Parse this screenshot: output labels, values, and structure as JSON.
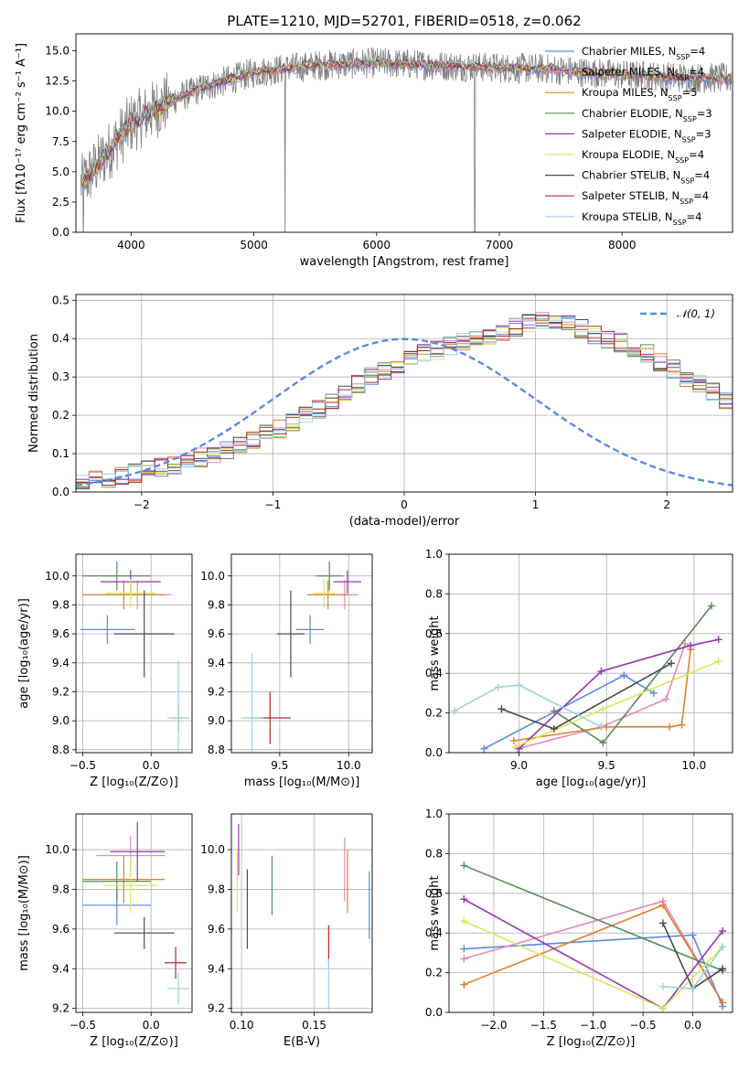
{
  "title": "PLATE=1210, MJD=52701, FIBERID=0518, z=0.062",
  "colors": {
    "Chabrier MILES": "#5b8ae0",
    "Salpeter MILES": "#e489c0",
    "Kroupa MILES": "#df7f2e",
    "Chabrier ELODIE": "#5b8a5e",
    "Salpeter ELODIE": "#9636b2",
    "Kroupa ELODIE": "#d7ea5a",
    "Chabrier STELIB": "#4a4a4a",
    "Salpeter STELIB": "#b52a2a",
    "Kroupa STELIB": "#9bd3e0",
    "data": "#808080",
    "normal": "#5b8ae0"
  },
  "chart_data": [
    {
      "type": "line",
      "title": "PLATE=1210, MJD=52701, FIBERID=0518, z=0.062",
      "xlabel": "wavelength [Angstrom, rest frame]",
      "ylabel": "Flux [f_λ 10^-17 erg cm^-2 s^-1 A^-1]",
      "xlim": [
        3550,
        8900
      ],
      "ylim": [
        0,
        16.4
      ],
      "xticks": [
        "4000",
        "5000",
        "6000",
        "7000",
        "8000"
      ],
      "yticks": [
        "0.0",
        "2.5",
        "5.0",
        "7.5",
        "10.0",
        "12.5",
        "15.0"
      ],
      "continuum": {
        "x": [
          3600,
          3800,
          4000,
          4300,
          4600,
          5000,
          5500,
          6000,
          6500,
          7000,
          7400,
          7600,
          8000,
          8500,
          8900
        ],
        "y": [
          4.0,
          6.5,
          9.0,
          10.8,
          12.0,
          13.2,
          13.8,
          14.0,
          13.8,
          13.6,
          13.5,
          13.3,
          13.0,
          12.8,
          12.7
        ]
      },
      "legend": [
        {
          "name": "Chabrier MILES",
          "nssp": "4"
        },
        {
          "name": "Salpeter MILES",
          "nssp": "4"
        },
        {
          "name": "Kroupa MILES",
          "nssp": "5"
        },
        {
          "name": "Chabrier ELODIE",
          "nssp": "3"
        },
        {
          "name": "Salpeter ELODIE",
          "nssp": "3"
        },
        {
          "name": "Kroupa ELODIE",
          "nssp": "4"
        },
        {
          "name": "Chabrier STELIB",
          "nssp": "4"
        },
        {
          "name": "Salpeter STELIB",
          "nssp": "4"
        },
        {
          "name": "Kroupa STELIB",
          "nssp": "4"
        }
      ],
      "grid": false,
      "legend_position": "right"
    },
    {
      "type": "bar",
      "xlabel": "(data-model)/error",
      "ylabel": "Normed distribution",
      "xlim": [
        -2.5,
        2.5
      ],
      "ylim": [
        0,
        0.515
      ],
      "xticks": [
        "−2",
        "−1",
        "0",
        "1",
        "2"
      ],
      "yticks": [
        "0.0",
        "0.1",
        "0.2",
        "0.3",
        "0.4",
        "0.5"
      ],
      "legend": [
        "𝒩(0, 1)"
      ],
      "grid": true,
      "legend_position": "top-right",
      "bin_width": 0.1,
      "histogram": [
        0.03,
        0.03,
        0.035,
        0.04,
        0.05,
        0.06,
        0.065,
        0.07,
        0.08,
        0.09,
        0.1,
        0.11,
        0.12,
        0.135,
        0.15,
        0.165,
        0.18,
        0.2,
        0.215,
        0.235,
        0.26,
        0.28,
        0.3,
        0.315,
        0.33,
        0.345,
        0.36,
        0.37,
        0.38,
        0.39,
        0.4,
        0.41,
        0.42,
        0.43,
        0.44,
        0.45,
        0.44,
        0.435,
        0.425,
        0.41,
        0.4,
        0.39,
        0.375,
        0.36,
        0.34,
        0.32,
        0.3,
        0.28,
        0.26,
        0.24,
        0.22,
        0.2,
        0.18,
        0.16,
        0.14,
        0.125,
        0.11,
        0.1,
        0.09,
        0.08,
        0.07,
        0.06,
        0.05,
        0.045,
        0.04,
        0.035,
        0.03,
        0.03,
        0.025,
        0.025
      ]
    },
    {
      "type": "scatter",
      "xlabel": "Z [log₁₀(Z/Z⊙)]",
      "ylabel": "age  [log₁₀(age/yr)]",
      "xlim": [
        -0.55,
        0.3
      ],
      "ylim": [
        8.78,
        10.15
      ],
      "xticks": [
        "−0.5",
        "0.0"
      ],
      "yticks": [
        "8.8",
        "9.0",
        "9.2",
        "9.4",
        "9.6",
        "9.8",
        "10.0"
      ],
      "grid": true,
      "points": [
        {
          "model": "Chabrier MILES",
          "x": -0.32,
          "y": 9.63,
          "xerr": 0.2,
          "yerr": 0.1
        },
        {
          "model": "Salpeter MILES",
          "x": -0.1,
          "y": 9.87,
          "xerr": 0.25,
          "yerr": 0.1
        },
        {
          "model": "Kroupa MILES",
          "x": -0.2,
          "y": 9.87,
          "xerr": 0.3,
          "yerr": 0.1
        },
        {
          "model": "Chabrier ELODIE",
          "x": -0.25,
          "y": 10.0,
          "xerr": 0.25,
          "yerr": 0.1
        },
        {
          "model": "Salpeter ELODIE",
          "x": -0.15,
          "y": 9.96,
          "xerr": 0.22,
          "yerr": 0.08
        },
        {
          "model": "Kroupa ELODIE",
          "x": -0.15,
          "y": 9.88,
          "xerr": 0.18,
          "yerr": 0.1
        },
        {
          "model": "Chabrier STELIB",
          "x": -0.05,
          "y": 9.6,
          "xerr": 0.22,
          "yerr": 0.3
        },
        {
          "model": "Salpeter STELIB",
          "x": 0.2,
          "y": 9.02,
          "xerr": 0.05,
          "yerr": 0.1
        },
        {
          "model": "Kroupa STELIB",
          "x": 0.2,
          "y": 9.02,
          "xerr": 0.08,
          "yerr": 0.4
        }
      ]
    },
    {
      "type": "scatter",
      "xlabel": "mass [log₁₀(M/M⊙)]",
      "ylabel": "",
      "xlim": [
        9.15,
        10.17
      ],
      "ylim": [
        8.78,
        10.15
      ],
      "xticks": [
        "9.5",
        "10.0"
      ],
      "yticks": [
        "8.8",
        "9.0",
        "9.2",
        "9.4",
        "9.6",
        "9.8",
        "10.0"
      ],
      "grid": true,
      "points": [
        {
          "model": "Chabrier MILES",
          "x": 9.72,
          "y": 9.63,
          "xerr": 0.1,
          "yerr": 0.1
        },
        {
          "model": "Salpeter MILES",
          "x": 9.97,
          "y": 9.87,
          "xerr": 0.1,
          "yerr": 0.1
        },
        {
          "model": "Kroupa MILES",
          "x": 9.85,
          "y": 9.87,
          "xerr": 0.15,
          "yerr": 0.1
        },
        {
          "model": "Chabrier ELODIE",
          "x": 9.86,
          "y": 10.0,
          "xerr": 0.1,
          "yerr": 0.1
        },
        {
          "model": "Salpeter ELODIE",
          "x": 9.99,
          "y": 9.96,
          "xerr": 0.1,
          "yerr": 0.08
        },
        {
          "model": "Kroupa ELODIE",
          "x": 9.82,
          "y": 9.88,
          "xerr": 0.08,
          "yerr": 0.1
        },
        {
          "model": "Chabrier STELIB",
          "x": 9.58,
          "y": 9.6,
          "xerr": 0.1,
          "yerr": 0.3
        },
        {
          "model": "Salpeter STELIB",
          "x": 9.43,
          "y": 9.02,
          "xerr": 0.15,
          "yerr": 0.18
        },
        {
          "model": "Kroupa STELIB",
          "x": 9.3,
          "y": 9.02,
          "xerr": 0.08,
          "yerr": 0.45
        }
      ]
    },
    {
      "type": "line",
      "xlabel": "age  [log₁₀(age/yr)]",
      "ylabel": "mass weight",
      "xlim": [
        8.6,
        10.22
      ],
      "ylim": [
        0,
        1
      ],
      "xticks": [
        "9.0",
        "9.5",
        "10.0"
      ],
      "yticks": [
        "0.0",
        "0.2",
        "0.4",
        "0.6",
        "0.8",
        "1.0"
      ],
      "grid": true,
      "series": [
        {
          "model": "Chabrier MILES",
          "x": [
            8.8,
            9.6,
            9.77
          ],
          "y": [
            0.02,
            0.39,
            0.3
          ]
        },
        {
          "model": "Salpeter MILES",
          "x": [
            8.99,
            9.47,
            9.84,
            9.95
          ],
          "y": [
            0.02,
            0.13,
            0.27,
            0.55
          ]
        },
        {
          "model": "Kroupa MILES",
          "x": [
            8.97,
            9.5,
            9.86,
            9.93,
            9.98
          ],
          "y": [
            0.06,
            0.13,
            0.13,
            0.14,
            0.52
          ]
        },
        {
          "model": "Chabrier ELODIE",
          "x": [
            9.2,
            9.48,
            10.1
          ],
          "y": [
            0.21,
            0.05,
            0.74
          ]
        },
        {
          "model": "Salpeter ELODIE",
          "x": [
            9.0,
            9.47,
            9.98,
            10.14
          ],
          "y": [
            0.02,
            0.41,
            0.54,
            0.57
          ]
        },
        {
          "model": "Kroupa ELODIE",
          "x": [
            8.98,
            9.48,
            10.14
          ],
          "y": [
            0.03,
            0.22,
            0.46
          ]
        },
        {
          "model": "Chabrier STELIB",
          "x": [
            8.9,
            9.2,
            9.87
          ],
          "y": [
            0.22,
            0.12,
            0.45
          ]
        },
        {
          "model": "Salpeter STELIB",
          "x": [],
          "y": []
        },
        {
          "model": "Kroupa STELIB",
          "x": [
            8.63,
            8.88,
            9.0,
            9.47
          ],
          "y": [
            0.21,
            0.33,
            0.34,
            0.13
          ]
        }
      ]
    },
    {
      "type": "scatter",
      "xlabel": "Z [log₁₀(Z/Z⊙)]",
      "ylabel": "mass [log₁₀(M/M⊙)]",
      "xlim": [
        -0.55,
        0.3
      ],
      "ylim": [
        9.18,
        10.18
      ],
      "xticks": [
        "−0.5",
        "0.0"
      ],
      "yticks": [
        "9.2",
        "9.4",
        "9.6",
        "9.8",
        "10.0"
      ],
      "grid": true,
      "points": [
        {
          "model": "Chabrier MILES",
          "x": -0.25,
          "y": 9.72,
          "xerr": 0.25,
          "yerr": 0.1
        },
        {
          "model": "Salpeter MILES",
          "x": -0.15,
          "y": 9.97,
          "xerr": 0.25,
          "yerr": 0.1
        },
        {
          "model": "Kroupa MILES",
          "x": -0.2,
          "y": 9.85,
          "xerr": 0.3,
          "yerr": 0.12
        },
        {
          "model": "Chabrier ELODIE",
          "x": -0.25,
          "y": 9.84,
          "xerr": 0.25,
          "yerr": 0.1
        },
        {
          "model": "Salpeter ELODIE",
          "x": -0.1,
          "y": 9.99,
          "xerr": 0.2,
          "yerr": 0.15
        },
        {
          "model": "Kroupa ELODIE",
          "x": -0.15,
          "y": 9.82,
          "xerr": 0.2,
          "yerr": 0.14
        },
        {
          "model": "Chabrier STELIB",
          "x": -0.05,
          "y": 9.58,
          "xerr": 0.22,
          "yerr": 0.08
        },
        {
          "model": "Salpeter STELIB",
          "x": 0.18,
          "y": 9.43,
          "xerr": 0.08,
          "yerr": 0.08
        },
        {
          "model": "Kroupa STELIB",
          "x": 0.2,
          "y": 9.3,
          "xerr": 0.08,
          "yerr": 0.08
        }
      ]
    },
    {
      "type": "scatter",
      "xlabel": "E(B-V)",
      "ylabel": "",
      "xlim": [
        0.093,
        0.19
      ],
      "ylim": [
        9.18,
        10.18
      ],
      "xticks": [
        "0.10",
        "0.15"
      ],
      "yticks": [
        "9.2",
        "9.4",
        "9.6",
        "9.8",
        "10.0"
      ],
      "grid": true,
      "points": [
        {
          "model": "Chabrier MILES",
          "x": 0.188,
          "y": 9.72,
          "yerr": 0.17
        },
        {
          "model": "Salpeter MILES",
          "x": 0.171,
          "y": 9.9,
          "yerr": 0.16
        },
        {
          "model": "Kroupa MILES",
          "x": 0.173,
          "y": 9.84,
          "yerr": 0.16
        },
        {
          "model": "Chabrier ELODIE",
          "x": 0.121,
          "y": 9.82,
          "yerr": 0.15
        },
        {
          "model": "Salpeter ELODIE",
          "x": 0.098,
          "y": 10.0,
          "yerr": 0.13
        },
        {
          "model": "Kroupa ELODIE",
          "x": 0.097,
          "y": 9.85,
          "yerr": 0.16
        },
        {
          "model": "Chabrier STELIB",
          "x": 0.104,
          "y": 9.7,
          "yerr": 0.2
        },
        {
          "model": "Salpeter STELIB",
          "x": 0.16,
          "y": 9.52,
          "yerr": 0.1
        },
        {
          "model": "Kroupa STELIB",
          "x": 0.16,
          "y": 9.32,
          "yerr": 0.13
        }
      ]
    },
    {
      "type": "line",
      "xlabel": "Z [log₁₀(Z/Z⊙)]",
      "ylabel": "mass weight",
      "xlim": [
        -2.45,
        0.4
      ],
      "ylim": [
        0,
        1
      ],
      "xticks": [
        "−2.0",
        "−1.5",
        "−1.0",
        "−0.5",
        "0.0"
      ],
      "yticks": [
        "0.0",
        "0.2",
        "0.4",
        "0.6",
        "0.8",
        "1.0"
      ],
      "grid": true,
      "series": [
        {
          "model": "Chabrier MILES",
          "x": [
            -2.3,
            0.0,
            0.3
          ],
          "y": [
            0.32,
            0.39,
            0.03
          ]
        },
        {
          "model": "Salpeter MILES",
          "x": [
            -2.3,
            -0.3,
            0.3
          ],
          "y": [
            0.27,
            0.56,
            0.05
          ]
        },
        {
          "model": "Kroupa MILES",
          "x": [
            -2.3,
            -0.3,
            0.3
          ],
          "y": [
            0.14,
            0.54,
            0.05
          ]
        },
        {
          "model": "Chabrier ELODIE",
          "x": [
            -2.3,
            0.3
          ],
          "y": [
            0.74,
            0.21
          ]
        },
        {
          "model": "Salpeter ELODIE",
          "x": [
            -2.3,
            -0.3,
            0.3
          ],
          "y": [
            0.57,
            0.02,
            0.41
          ]
        },
        {
          "model": "Kroupa ELODIE",
          "x": [
            -2.3,
            -0.3,
            0.3
          ],
          "y": [
            0.46,
            0.02,
            0.33
          ]
        },
        {
          "model": "Chabrier STELIB",
          "x": [
            -0.3,
            0.0,
            0.3
          ],
          "y": [
            0.45,
            0.12,
            0.22
          ]
        },
        {
          "model": "Salpeter STELIB",
          "x": [],
          "y": []
        },
        {
          "model": "Kroupa STELIB",
          "x": [
            -0.3,
            0.0,
            0.3
          ],
          "y": [
            0.13,
            0.12,
            0.33
          ]
        }
      ]
    }
  ]
}
